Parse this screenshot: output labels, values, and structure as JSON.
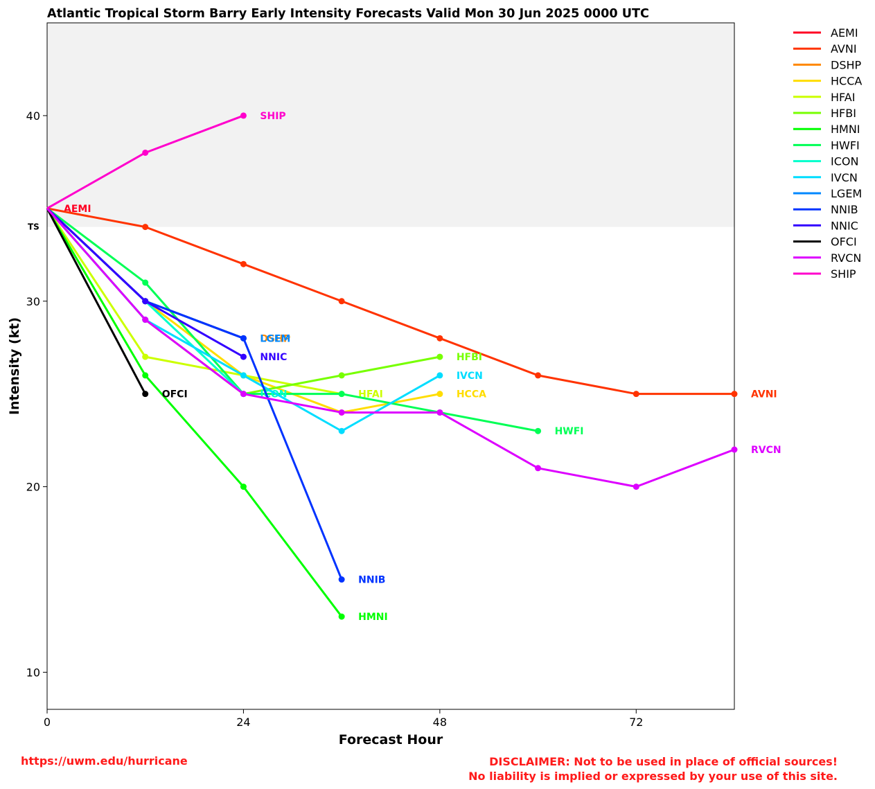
{
  "chart_data": {
    "type": "line",
    "title": "Atlantic Tropical Storm Barry Early Intensity Forecasts Valid Mon 30 Jun 2025 0000 UTC",
    "xlabel": "Forecast Hour",
    "ylabel": "Intensity (kt)",
    "xlim": [
      0,
      84
    ],
    "ylim": [
      8,
      45
    ],
    "xticks": [
      0,
      24,
      48,
      72
    ],
    "yticks": [
      10,
      20,
      30,
      40
    ],
    "shaded_region": {
      "from": 34,
      "to": 45,
      "label": "TS",
      "color": "#f2f2f2"
    },
    "legend_position": "right",
    "grid": false,
    "series": [
      {
        "name": "AEMI",
        "color": "#ff0022",
        "x": [
          0
        ],
        "y": [
          35
        ]
      },
      {
        "name": "AVNI",
        "color": "#ff3300",
        "x": [
          0,
          12,
          24,
          36,
          48,
          60,
          72,
          84
        ],
        "y": [
          35,
          34,
          32,
          30,
          28,
          26,
          25,
          25
        ]
      },
      {
        "name": "DSHP",
        "color": "#ff8800",
        "x": [
          0,
          12,
          24
        ],
        "y": [
          35,
          30,
          28
        ]
      },
      {
        "name": "HCCA",
        "color": "#ffdd00",
        "x": [
          0,
          12,
          24,
          36,
          48
        ],
        "y": [
          35,
          30,
          26,
          24,
          25
        ]
      },
      {
        "name": "HFAI",
        "color": "#ccff00",
        "x": [
          0,
          12,
          24,
          36
        ],
        "y": [
          35,
          27,
          26,
          25
        ]
      },
      {
        "name": "HFBI",
        "color": "#77ff00",
        "x": [
          0,
          12,
          24,
          36,
          48
        ],
        "y": [
          35,
          29,
          25,
          26,
          27
        ]
      },
      {
        "name": "HMNI",
        "color": "#00ff00",
        "x": [
          0,
          12,
          24,
          36
        ],
        "y": [
          35,
          26,
          20,
          13
        ]
      },
      {
        "name": "HWFI",
        "color": "#00ff55",
        "x": [
          0,
          12,
          24,
          36,
          48,
          60
        ],
        "y": [
          35,
          31,
          25,
          25,
          24,
          23
        ]
      },
      {
        "name": "ICON",
        "color": "#00ffcc",
        "x": [
          0,
          12,
          24
        ],
        "y": [
          35,
          30,
          25
        ]
      },
      {
        "name": "IVCN",
        "color": "#00ddff",
        "x": [
          0,
          12,
          24,
          36,
          48
        ],
        "y": [
          35,
          29,
          26,
          23,
          26
        ]
      },
      {
        "name": "LGEM",
        "color": "#0088ff",
        "x": [
          0,
          12,
          24
        ],
        "y": [
          35,
          30,
          28
        ]
      },
      {
        "name": "NNIB",
        "color": "#0033ff",
        "x": [
          0,
          12,
          24,
          36
        ],
        "y": [
          35,
          30,
          28,
          15
        ]
      },
      {
        "name": "NNIC",
        "color": "#3300ff",
        "x": [
          0,
          12,
          24
        ],
        "y": [
          35,
          30,
          27
        ]
      },
      {
        "name": "OFCI",
        "color": "#000000",
        "x": [
          0,
          12
        ],
        "y": [
          35,
          25
        ]
      },
      {
        "name": "RVCN",
        "color": "#dd00ff",
        "x": [
          0,
          12,
          24,
          36,
          48,
          60,
          72,
          84
        ],
        "y": [
          35,
          29,
          25,
          24,
          24,
          21,
          20,
          22
        ]
      },
      {
        "name": "SHIP",
        "color": "#ff00cc",
        "x": [
          0,
          12,
          24
        ],
        "y": [
          35,
          38,
          40
        ]
      }
    ]
  },
  "footer": {
    "url": "https://uwm.edu/hurricane",
    "disclaimer_line1": "DISCLAIMER: Not to be used in place of official sources!",
    "disclaimer_line2": "No liability is implied or expressed by your use of this site."
  }
}
